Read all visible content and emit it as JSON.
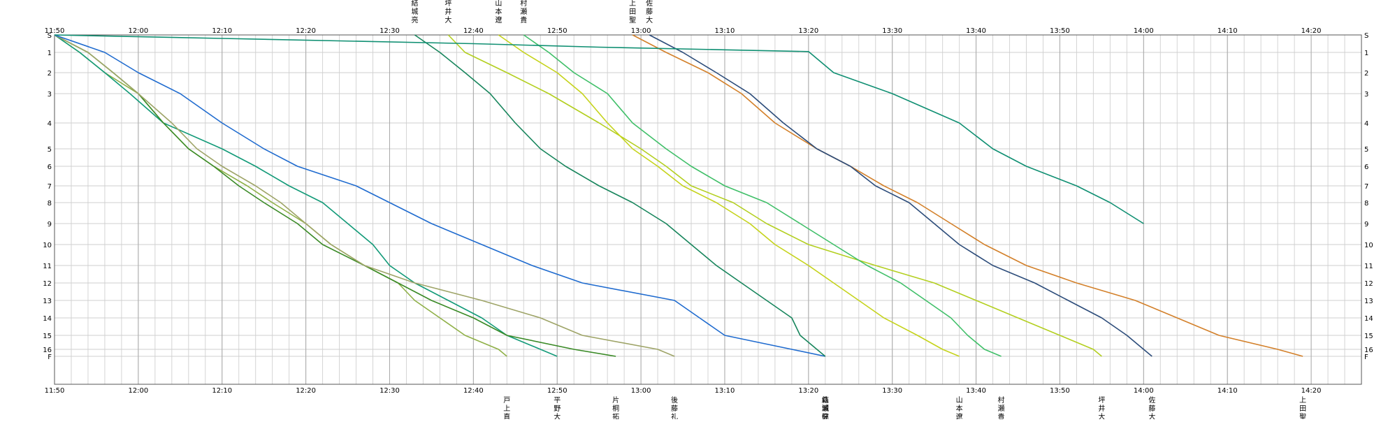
{
  "chart_data": {
    "type": "line",
    "xlabel": "",
    "ylabel": "",
    "xlim": [
      "11:50",
      "14:26"
    ],
    "ylim_stations": [
      "S",
      "F"
    ],
    "grid": true,
    "x_ticks": [
      "11:50",
      "12:00",
      "12:10",
      "12:20",
      "12:30",
      "12:40",
      "12:50",
      "13:00",
      "13:10",
      "13:20",
      "13:30",
      "13:40",
      "13:50",
      "14:00",
      "14:10",
      "14:20"
    ],
    "y_ticks": [
      {
        "label": "S",
        "pos": 0
      },
      {
        "label": "1",
        "pos": 1
      },
      {
        "label": "2",
        "pos": 2
      },
      {
        "label": "3",
        "pos": 3
      },
      {
        "label": "4",
        "pos": 4
      },
      {
        "label": "5",
        "pos": 5
      },
      {
        "label": "6",
        "pos": 6
      },
      {
        "label": "7",
        "pos": 7
      },
      {
        "label": "8",
        "pos": 8
      },
      {
        "label": "9",
        "pos": 9
      },
      {
        "label": "10",
        "pos": 10
      },
      {
        "label": "11",
        "pos": 11
      },
      {
        "label": "12",
        "pos": 12
      },
      {
        "label": "13",
        "pos": 13
      },
      {
        "label": "14",
        "pos": 14
      },
      {
        "label": "15",
        "pos": 15
      },
      {
        "label": "16",
        "pos": 16
      },
      {
        "label": "F",
        "pos": 16.3
      }
    ],
    "y_breaks": [
      0,
      1,
      2,
      3,
      4,
      5,
      6,
      7,
      8,
      9,
      10,
      11,
      12,
      13,
      14,
      15,
      16,
      16.3
    ],
    "y_offsets": [
      0,
      25,
      54,
      84,
      126,
      163,
      188,
      216,
      240,
      270,
      300,
      330,
      355,
      380,
      405,
      430,
      450,
      460
    ],
    "series": [
      {
        "start_label": "",
        "end_label": "戸上直",
        "color": "#8fb047",
        "points": [
          [
            "11:50",
            0
          ],
          [
            "11:53",
            1
          ],
          [
            "11:56",
            2
          ],
          [
            "12:00",
            3
          ],
          [
            "12:03",
            4
          ],
          [
            "12:06",
            5
          ],
          [
            "12:09",
            6
          ],
          [
            "12:13",
            7
          ],
          [
            "12:16",
            8
          ],
          [
            "12:20",
            9
          ],
          [
            "12:23",
            10
          ],
          [
            "12:27",
            11
          ],
          [
            "12:31",
            12
          ],
          [
            "12:33",
            13
          ],
          [
            "12:36",
            14
          ],
          [
            "12:39",
            15
          ],
          [
            "12:43",
            16
          ],
          [
            "12:44",
            16.3
          ]
        ]
      },
      {
        "start_label": "",
        "end_label": "平野大",
        "color": "#129a78",
        "points": [
          [
            "11:50",
            0
          ],
          [
            "11:53",
            1
          ],
          [
            "11:56",
            2
          ],
          [
            "11:59",
            3
          ],
          [
            "12:03",
            4
          ],
          [
            "12:10",
            5
          ],
          [
            "12:14",
            6
          ],
          [
            "12:18",
            7
          ],
          [
            "12:22",
            8
          ],
          [
            "12:25",
            9
          ],
          [
            "12:28",
            10
          ],
          [
            "12:30",
            11
          ],
          [
            "12:33",
            12
          ],
          [
            "12:37",
            13
          ],
          [
            "12:41",
            14
          ],
          [
            "12:44",
            15
          ],
          [
            "12:48",
            16
          ],
          [
            "12:50",
            16.3
          ]
        ]
      },
      {
        "start_label": "",
        "end_label": "片桐拓",
        "color": "#3a8a26",
        "points": [
          [
            "11:50",
            0
          ],
          [
            "11:54",
            1
          ],
          [
            "11:57",
            2
          ],
          [
            "12:00",
            3
          ],
          [
            "12:03",
            4
          ],
          [
            "12:06",
            5
          ],
          [
            "12:09",
            6
          ],
          [
            "12:12",
            7
          ],
          [
            "12:15",
            8
          ],
          [
            "12:19",
            9
          ],
          [
            "12:22",
            10
          ],
          [
            "12:27",
            11
          ],
          [
            "12:31",
            12
          ],
          [
            "12:35",
            13
          ],
          [
            "12:40",
            14
          ],
          [
            "12:44",
            15
          ],
          [
            "12:52",
            16
          ],
          [
            "12:57",
            16.3
          ]
        ]
      },
      {
        "start_label": "",
        "end_label": "後藤礼",
        "color": "#9ea467",
        "points": [
          [
            "11:50",
            0
          ],
          [
            "11:54",
            1
          ],
          [
            "11:57",
            2
          ],
          [
            "12:00",
            3
          ],
          [
            "12:04",
            4
          ],
          [
            "12:07",
            5
          ],
          [
            "12:10",
            6
          ],
          [
            "12:14",
            7
          ],
          [
            "12:17",
            8
          ],
          [
            "12:20",
            9
          ],
          [
            "12:23",
            10
          ],
          [
            "12:27",
            11
          ],
          [
            "12:33",
            12
          ],
          [
            "12:41",
            13
          ],
          [
            "12:48",
            14
          ],
          [
            "12:53",
            15
          ],
          [
            "13:02",
            16
          ],
          [
            "13:04",
            16.3
          ]
        ]
      },
      {
        "start_label": "",
        "end_label": "森瀬健",
        "color": "#1f6bcf",
        "points": [
          [
            "11:50",
            0
          ],
          [
            "11:56",
            1
          ],
          [
            "12:00",
            2
          ],
          [
            "12:05",
            3
          ],
          [
            "12:10",
            4
          ],
          [
            "12:15",
            5
          ],
          [
            "12:19",
            6
          ],
          [
            "12:26",
            7
          ],
          [
            "12:30",
            8
          ],
          [
            "12:35",
            9
          ],
          [
            "12:41",
            10
          ],
          [
            "12:47",
            11
          ],
          [
            "12:53",
            12
          ],
          [
            "13:04",
            13
          ],
          [
            "13:07",
            14
          ],
          [
            "13:10",
            15
          ],
          [
            "13:18",
            16
          ],
          [
            "13:22",
            16.3
          ]
        ]
      },
      {
        "start_label": "結城亮",
        "end_label": "結城亮",
        "color": "#17855c",
        "points": [
          [
            "12:33",
            0
          ],
          [
            "12:36",
            1
          ],
          [
            "12:39",
            2
          ],
          [
            "12:42",
            3
          ],
          [
            "12:45",
            4
          ],
          [
            "12:48",
            5
          ],
          [
            "12:51",
            6
          ],
          [
            "12:55",
            7
          ],
          [
            "12:59",
            8
          ],
          [
            "13:03",
            9
          ],
          [
            "13:06",
            10
          ],
          [
            "13:09",
            11
          ],
          [
            "13:12",
            12
          ],
          [
            "13:15",
            13
          ],
          [
            "13:18",
            14
          ],
          [
            "13:19",
            15
          ],
          [
            "13:21",
            16
          ],
          [
            "13:22",
            16.3
          ]
        ]
      },
      {
        "start_label": "坪井大",
        "end_label": "坪井大",
        "color": "#b3cf1f",
        "points": [
          [
            "12:37",
            0
          ],
          [
            "12:39",
            1
          ],
          [
            "12:44",
            2
          ],
          [
            "12:49",
            3
          ],
          [
            "12:55",
            4
          ],
          [
            "13:00",
            5
          ],
          [
            "13:03",
            6
          ],
          [
            "13:06",
            7
          ],
          [
            "13:11",
            8
          ],
          [
            "13:15",
            9
          ],
          [
            "13:20",
            10
          ],
          [
            "13:28",
            11
          ],
          [
            "13:35",
            12
          ],
          [
            "13:40",
            13
          ],
          [
            "13:45",
            14
          ],
          [
            "13:50",
            15
          ],
          [
            "13:54",
            16
          ],
          [
            "13:55",
            16.3
          ]
        ]
      },
      {
        "start_label": "山本遼",
        "end_label": "山本遼",
        "color": "#c5d31b",
        "points": [
          [
            "12:43",
            0
          ],
          [
            "12:46",
            1
          ],
          [
            "12:50",
            2
          ],
          [
            "12:53",
            3
          ],
          [
            "12:56",
            4
          ],
          [
            "12:59",
            5
          ],
          [
            "13:02",
            6
          ],
          [
            "13:05",
            7
          ],
          [
            "13:09",
            8
          ],
          [
            "13:13",
            9
          ],
          [
            "13:16",
            10
          ],
          [
            "13:20",
            11
          ],
          [
            "13:23",
            12
          ],
          [
            "13:26",
            13
          ],
          [
            "13:29",
            14
          ],
          [
            "13:33",
            15
          ],
          [
            "13:36",
            16
          ],
          [
            "13:38",
            16.3
          ]
        ]
      },
      {
        "start_label": "村瀬貴",
        "end_label": "村瀬貴",
        "color": "#3fbf68",
        "points": [
          [
            "12:46",
            0
          ],
          [
            "12:49",
            1
          ],
          [
            "12:52",
            2
          ],
          [
            "12:56",
            3
          ],
          [
            "12:59",
            4
          ],
          [
            "13:03",
            5
          ],
          [
            "13:06",
            6
          ],
          [
            "13:10",
            7
          ],
          [
            "13:15",
            8
          ],
          [
            "13:19",
            9
          ],
          [
            "13:23",
            10
          ],
          [
            "13:27",
            11
          ],
          [
            "13:31",
            12
          ],
          [
            "13:34",
            13
          ],
          [
            "13:37",
            14
          ],
          [
            "13:39",
            15
          ],
          [
            "13:41",
            16
          ],
          [
            "13:43",
            16.3
          ]
        ]
      },
      {
        "start_label": "上田聖",
        "end_label": "上田聖",
        "color": "#d3802a",
        "points": [
          [
            "12:59",
            0
          ],
          [
            "13:03",
            1
          ],
          [
            "13:08",
            2
          ],
          [
            "13:12",
            3
          ],
          [
            "13:16",
            4
          ],
          [
            "13:21",
            5
          ],
          [
            "13:25",
            6
          ],
          [
            "13:29",
            7
          ],
          [
            "13:33",
            8
          ],
          [
            "13:37",
            9
          ],
          [
            "13:41",
            10
          ],
          [
            "13:46",
            11
          ],
          [
            "13:52",
            12
          ],
          [
            "13:59",
            13
          ],
          [
            "14:04",
            14
          ],
          [
            "14:09",
            15
          ],
          [
            "14:16",
            16
          ],
          [
            "14:19",
            16.3
          ]
        ]
      },
      {
        "start_label": "佐藤大",
        "end_label": "佐藤大",
        "color": "#2c4c7a",
        "points": [
          [
            "13:01",
            0
          ],
          [
            "13:05",
            1
          ],
          [
            "13:09",
            2
          ],
          [
            "13:13",
            3
          ],
          [
            "13:17",
            4
          ],
          [
            "13:21",
            5
          ],
          [
            "13:25",
            6
          ],
          [
            "13:28",
            7
          ],
          [
            "13:32",
            8
          ],
          [
            "13:35",
            9
          ],
          [
            "13:38",
            10
          ],
          [
            "13:42",
            11
          ],
          [
            "13:47",
            12
          ],
          [
            "13:51",
            13
          ],
          [
            "13:55",
            14
          ],
          [
            "13:58",
            15
          ],
          [
            "14:00",
            16
          ],
          [
            "14:01",
            16.3
          ]
        ]
      },
      {
        "start_label": "",
        "end_label": "",
        "color": "#0f8f72",
        "points": [
          [
            "11:50",
            0
          ],
          [
            "12:10",
            0.2
          ],
          [
            "12:40",
            0.5
          ],
          [
            "12:55",
            0.7
          ],
          [
            "13:10",
            0.85
          ],
          [
            "13:20",
            0.95
          ],
          [
            "13:23",
            2
          ],
          [
            "13:30",
            3
          ],
          [
            "13:38",
            4
          ],
          [
            "13:42",
            5
          ],
          [
            "13:46",
            6
          ],
          [
            "13:52",
            7
          ],
          [
            "13:56",
            8
          ],
          [
            "14:00",
            9
          ]
        ]
      }
    ]
  }
}
